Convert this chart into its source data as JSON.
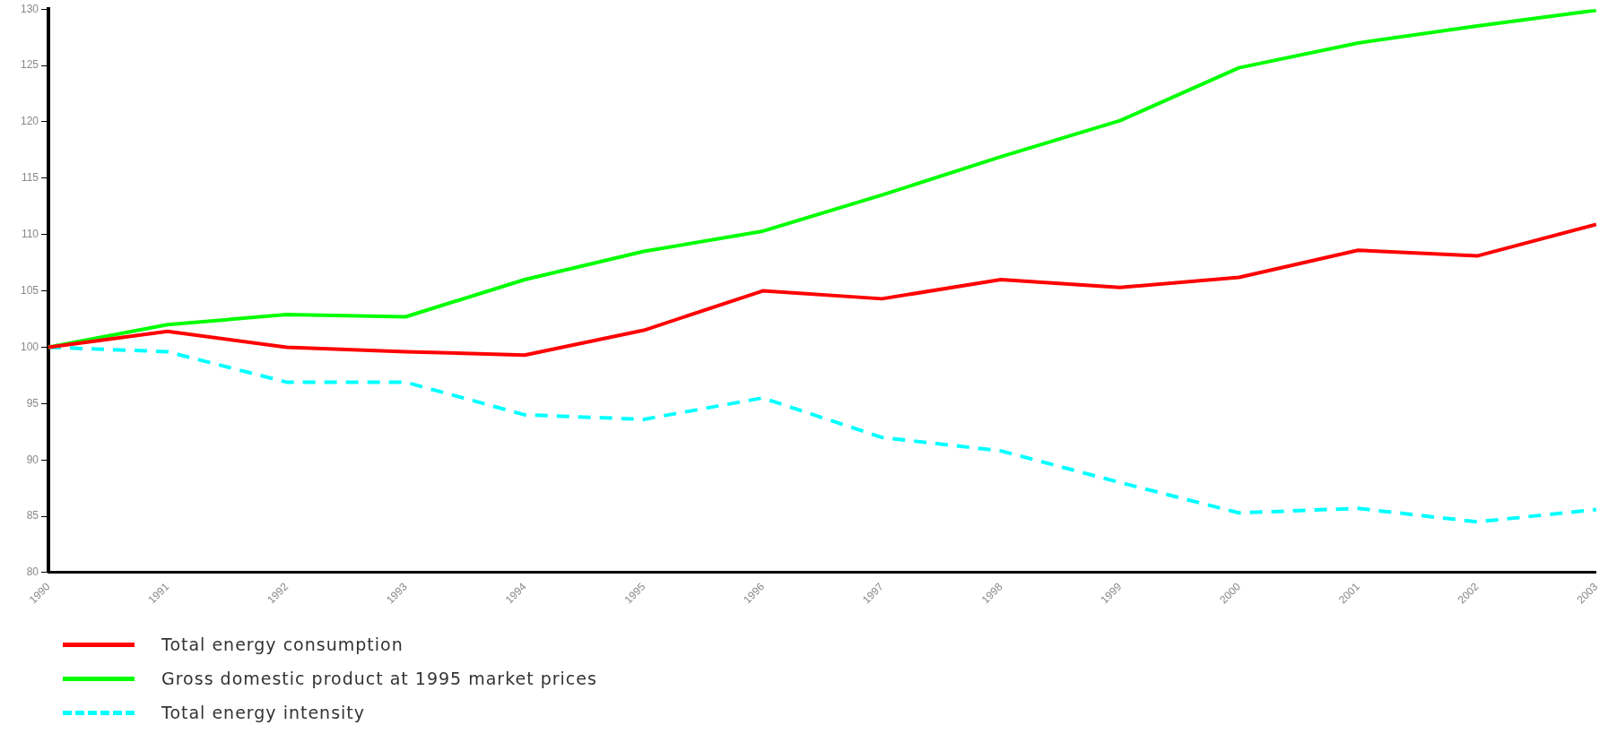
{
  "chart_data": {
    "type": "line",
    "categories": [
      "1990",
      "1991",
      "1992",
      "1993",
      "1994",
      "1995",
      "1996",
      "1997",
      "1998",
      "1999",
      "2000",
      "2001",
      "2002",
      "2003"
    ],
    "series": [
      {
        "name": "Total energy consumption",
        "color": "#ff0000",
        "line_style": "solid",
        "values": [
          100,
          101.4,
          100.0,
          99.6,
          99.3,
          101.5,
          105.0,
          104.3,
          106.0,
          105.3,
          106.2,
          108.6,
          108.1,
          110.9
        ]
      },
      {
        "name": "Gross domestic product at 1995 market prices",
        "color": "#00ff00",
        "line_style": "solid",
        "values": [
          100,
          102.0,
          102.9,
          102.7,
          106.0,
          108.5,
          110.3,
          113.5,
          116.9,
          120.1,
          124.8,
          127.0,
          128.5,
          129.9
        ]
      },
      {
        "name": "Total energy intensity",
        "color": "#00ffff",
        "line_style": "dashed",
        "values": [
          100,
          99.6,
          96.9,
          96.9,
          94.0,
          93.6,
          95.5,
          92.0,
          90.8,
          88.0,
          85.3,
          85.7,
          84.5,
          85.6
        ]
      }
    ],
    "ylim": [
      80,
      130
    ],
    "yticks": [
      80,
      85,
      90,
      95,
      100,
      105,
      110,
      115,
      120,
      125,
      130
    ],
    "grid": false,
    "legend": "bottom",
    "marker": "none"
  }
}
